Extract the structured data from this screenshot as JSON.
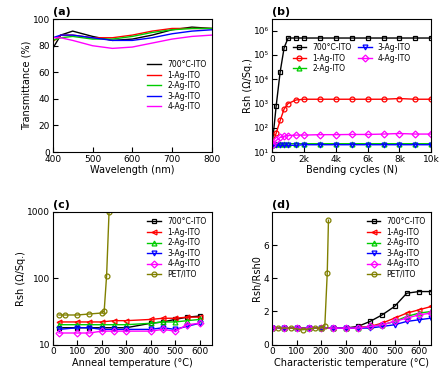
{
  "chart_data": [
    {
      "type": "line",
      "title": "(a)",
      "x_label": "Wavelength (nm)",
      "y_label": "Transmittance (%)",
      "x": [
        400,
        420,
        450,
        500,
        550,
        600,
        650,
        700,
        750,
        800
      ],
      "xlim": [
        400,
        800
      ],
      "xticks": [
        400,
        500,
        600,
        700,
        800
      ],
      "ylim": [
        0,
        100
      ],
      "yticks": [
        0,
        20,
        40,
        60,
        80,
        100
      ],
      "legend": "center right",
      "series": [
        {
          "name": "700°C-ITO",
          "color": "#000000",
          "line_style": "solid",
          "values": [
            78,
            88,
            91,
            87,
            84,
            85,
            88,
            92,
            94,
            93
          ]
        },
        {
          "name": "1-Ag-ITO",
          "color": "#ff0000",
          "line_style": "solid",
          "values": [
            83,
            88,
            88,
            86,
            86,
            88,
            91,
            93,
            93,
            93
          ]
        },
        {
          "name": "2-Ag-ITO",
          "color": "#00cc00",
          "line_style": "solid",
          "values": [
            84,
            86,
            87,
            85,
            85,
            87,
            90,
            92,
            93,
            93
          ]
        },
        {
          "name": "3-Ag-ITO",
          "color": "#0000ff",
          "line_style": "solid",
          "values": [
            86,
            88,
            88,
            86,
            84,
            84,
            86,
            89,
            91,
            92
          ]
        },
        {
          "name": "4-Ag-ITO",
          "color": "#ff00ff",
          "line_style": "solid",
          "values": [
            86,
            86,
            84,
            80,
            78,
            79,
            82,
            85,
            87,
            88
          ]
        }
      ]
    },
    {
      "type": "line",
      "title": "(b)",
      "x_label": "Bending cycles (N)",
      "y_label": "Rsh (Ω/Sq.)",
      "log": "y",
      "x": [
        0,
        250,
        500,
        750,
        1000,
        1500,
        2000,
        3000,
        4000,
        5000,
        6000,
        7000,
        8000,
        9000,
        10000
      ],
      "xlim": [
        0,
        10000
      ],
      "xticks": [
        {
          "value": 0,
          "label": "0"
        },
        {
          "value": 2000,
          "label": "2k"
        },
        {
          "value": 4000,
          "label": "4k"
        },
        {
          "value": 6000,
          "label": "6k"
        },
        {
          "value": 8000,
          "label": "8k"
        },
        {
          "value": 10000,
          "label": "10k"
        }
      ],
      "ylim": [
        10,
        3000000
      ],
      "yticks": [
        {
          "value": 10,
          "label": "10¹"
        },
        {
          "value": 100,
          "label": "10²"
        },
        {
          "value": 1000,
          "label": "10³"
        },
        {
          "value": 10000,
          "label": "10⁴"
        },
        {
          "value": 100000,
          "label": "10⁵"
        },
        {
          "value": 1000000,
          "label": "10⁶"
        }
      ],
      "legend": "upper center",
      "series": [
        {
          "name": "700°C-ITO",
          "color": "#000000",
          "marker": "square",
          "line_style": "solid",
          "values": [
            20,
            800,
            20000,
            200000,
            500000,
            500000,
            500000,
            500000,
            500000,
            500000,
            500000,
            500000,
            500000,
            500000,
            500000
          ]
        },
        {
          "name": "1-Ag-ITO",
          "color": "#ff0000",
          "marker": "circle",
          "line_style": "solid",
          "values": [
            20,
            60,
            200,
            600,
            1000,
            1400,
            1500,
            1500,
            1500,
            1500,
            1500,
            1500,
            1600,
            1500,
            1500
          ]
        },
        {
          "name": "2-Ag-ITO",
          "color": "#00cc00",
          "marker": "triangle_up",
          "line_style": "solid",
          "values": [
            20,
            21,
            21,
            21,
            22,
            22,
            22,
            22,
            22,
            22,
            22,
            22,
            22,
            22,
            22
          ]
        },
        {
          "name": "3-Ag-ITO",
          "color": "#0000ff",
          "marker": "triangle_down",
          "line_style": "solid",
          "values": [
            18,
            19,
            19,
            19,
            19,
            19,
            20,
            20,
            20,
            20,
            20,
            20,
            20,
            20,
            20
          ]
        },
        {
          "name": "4-Ag-ITO",
          "color": "#ff00ff",
          "marker": "diamond",
          "line_style": "solid",
          "values": [
            20,
            30,
            40,
            45,
            48,
            50,
            50,
            52,
            52,
            53,
            53,
            55,
            58,
            55,
            55
          ]
        }
      ]
    },
    {
      "type": "line",
      "title": "(c)",
      "x_label": "Anneal temperature (°C)",
      "y_label": "Rsh (Ω/Sq.)",
      "log": "y",
      "xlim": [
        0,
        650
      ],
      "xticks": [
        0,
        100,
        200,
        300,
        400,
        500,
        600
      ],
      "ylim": [
        10,
        1000
      ],
      "yticks": [
        10,
        100,
        1000
      ],
      "legend": "upper right",
      "series": [
        {
          "name": "700°C-ITO",
          "color": "#000000",
          "marker": "square",
          "line_style": "solid",
          "x": [
            25,
            100,
            150,
            200,
            250,
            300,
            400,
            450,
            500,
            550,
            600
          ],
          "values": [
            18,
            18,
            18,
            18,
            18,
            18,
            21,
            22,
            24,
            26,
            27
          ]
        },
        {
          "name": "1-Ag-ITO",
          "color": "#ff0000",
          "marker": "triangle_left",
          "line_style": "solid",
          "x": [
            25,
            100,
            150,
            200,
            250,
            300,
            400,
            450,
            500,
            550,
            600
          ],
          "values": [
            22,
            22,
            22,
            22,
            23,
            23,
            24,
            25,
            25,
            26,
            26
          ]
        },
        {
          "name": "2-Ag-ITO",
          "color": "#00cc00",
          "marker": "triangle_up",
          "line_style": "solid",
          "x": [
            25,
            100,
            150,
            200,
            250,
            300,
            400,
            450,
            500,
            550,
            600
          ],
          "values": [
            20,
            20,
            20,
            20,
            20,
            20,
            21,
            22,
            22,
            23,
            24
          ]
        },
        {
          "name": "3-Ag-ITO",
          "color": "#0000ff",
          "marker": "triangle_down",
          "line_style": "solid",
          "x": [
            25,
            100,
            150,
            200,
            250,
            300,
            400,
            450,
            500,
            550,
            600
          ],
          "values": [
            17,
            18,
            18,
            17,
            17,
            17,
            17,
            18,
            17,
            19,
            21
          ]
        },
        {
          "name": "4-Ag-ITO",
          "color": "#ff00ff",
          "marker": "diamond",
          "line_style": "solid",
          "x": [
            25,
            100,
            150,
            200,
            250,
            300,
            400,
            450,
            500,
            550,
            600
          ],
          "values": [
            15,
            15,
            15,
            16,
            16,
            16,
            16,
            17,
            16,
            20,
            21
          ]
        },
        {
          "name": "PET/ITO",
          "color": "#808000",
          "marker": "circle",
          "line_style": "solid",
          "x": [
            25,
            50,
            100,
            150,
            200,
            210,
            220,
            230
          ],
          "values": [
            28,
            28,
            28,
            29,
            30,
            32,
            110,
            1000
          ]
        }
      ]
    },
    {
      "type": "line",
      "title": "(d)",
      "x_label": "Characteristic temperature (°C)",
      "y_label": "Rsh/Rsh0",
      "xlim": [
        0,
        650
      ],
      "xticks": [
        0,
        100,
        200,
        300,
        400,
        500,
        600
      ],
      "ylim": [
        0,
        8
      ],
      "yticks": [
        0,
        2,
        4,
        6
      ],
      "legend": "upper right",
      "series": [
        {
          "name": "700°C-ITO",
          "color": "#000000",
          "marker": "square",
          "line_style": "solid",
          "x": [
            0,
            50,
            100,
            150,
            200,
            250,
            300,
            350,
            400,
            450,
            500,
            550,
            600,
            650
          ],
          "values": [
            1,
            1,
            1,
            1,
            1,
            1,
            1,
            1.1,
            1.4,
            1.8,
            2.3,
            3.1,
            3.2,
            3.2
          ]
        },
        {
          "name": "1-Ag-ITO",
          "color": "#ff0000",
          "marker": "triangle_left",
          "line_style": "solid",
          "x": [
            0,
            50,
            100,
            150,
            200,
            250,
            300,
            350,
            400,
            450,
            500,
            550,
            600,
            650
          ],
          "values": [
            1,
            1,
            1,
            1,
            1,
            1,
            1,
            1.05,
            1.1,
            1.3,
            1.6,
            1.9,
            2.1,
            2.3
          ]
        },
        {
          "name": "2-Ag-ITO",
          "color": "#00cc00",
          "marker": "triangle_up",
          "line_style": "solid",
          "x": [
            0,
            50,
            100,
            150,
            200,
            250,
            300,
            350,
            400,
            450,
            500,
            550,
            600,
            650
          ],
          "values": [
            1,
            1,
            1,
            1,
            1,
            1,
            1,
            1,
            1.1,
            1.2,
            1.4,
            1.7,
            1.9,
            2.0
          ]
        },
        {
          "name": "3-Ag-ITO",
          "color": "#0000ff",
          "marker": "triangle_down",
          "line_style": "solid",
          "x": [
            0,
            50,
            100,
            150,
            200,
            250,
            300,
            350,
            400,
            450,
            500,
            550,
            600,
            650
          ],
          "values": [
            1,
            1,
            1,
            1,
            1,
            1,
            1,
            1,
            1,
            1.1,
            1.2,
            1.4,
            1.5,
            1.6
          ]
        },
        {
          "name": "4-Ag-ITO",
          "color": "#ff00ff",
          "marker": "diamond",
          "line_style": "solid",
          "x": [
            0,
            50,
            100,
            150,
            200,
            250,
            300,
            350,
            400,
            450,
            500,
            550,
            600,
            650
          ],
          "values": [
            1,
            1,
            1,
            1,
            1,
            1,
            1,
            1,
            1.1,
            1.2,
            1.4,
            1.6,
            1.8,
            1.9
          ]
        },
        {
          "name": "PET/ITO",
          "color": "#808000",
          "marker": "circle",
          "line_style": "solid",
          "x": [
            25,
            75,
            125,
            175,
            200,
            215,
            225,
            230
          ],
          "values": [
            1,
            1,
            0.9,
            1,
            1,
            1.1,
            4.3,
            7.5
          ]
        }
      ]
    }
  ]
}
